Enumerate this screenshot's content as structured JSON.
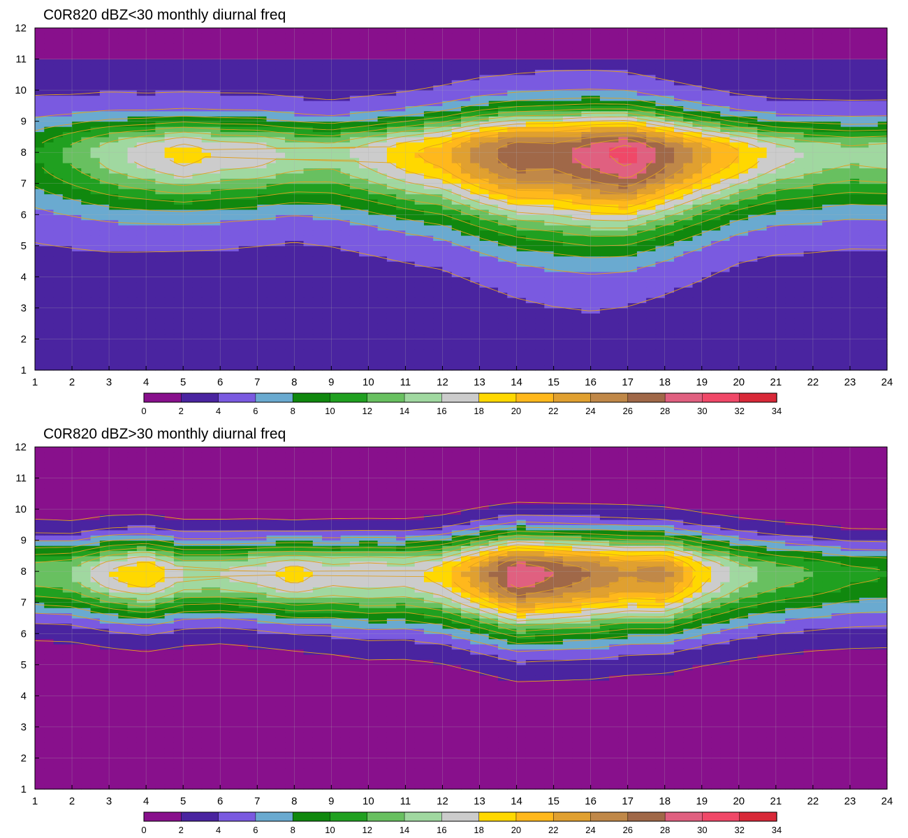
{
  "chart_data": [
    {
      "type": "heatmap",
      "title": "C0R820 dBZ<30 monthly diurnal freq",
      "xlabel": "",
      "ylabel": "",
      "xlim": [
        1,
        24
      ],
      "ylim": [
        1,
        12
      ],
      "x_ticks": [
        "1",
        "2",
        "3",
        "4",
        "5",
        "6",
        "7",
        "8",
        "9",
        "10",
        "11",
        "12",
        "13",
        "14",
        "15",
        "16",
        "17",
        "18",
        "19",
        "20",
        "21",
        "22",
        "23",
        "24"
      ],
      "y_ticks": [
        "1",
        "2",
        "3",
        "4",
        "5",
        "6",
        "7",
        "8",
        "9",
        "10",
        "11",
        "12"
      ],
      "grid": true,
      "colorbar": {
        "placement": "bottom",
        "levels": [
          0,
          2,
          4,
          6,
          8,
          10,
          12,
          14,
          16,
          18,
          20,
          22,
          24,
          26,
          28,
          30,
          32,
          34
        ],
        "labels": [
          "0",
          "2",
          "4",
          "6",
          "8",
          "10",
          "12",
          "14",
          "16",
          "18",
          "20",
          "22",
          "24",
          "26",
          "28",
          "30",
          "32",
          "34"
        ]
      },
      "profile": {
        "x": [
          1,
          2,
          3,
          4,
          5,
          6,
          7,
          8,
          9,
          10,
          11,
          12,
          13,
          14,
          15,
          16,
          17,
          18,
          19,
          20,
          21,
          22,
          23,
          24
        ],
        "peak": [
          10,
          12.5,
          15,
          17,
          19,
          17.5,
          17,
          15.5,
          15,
          17,
          19.5,
          21,
          25,
          27.5,
          27,
          29,
          31,
          27,
          23,
          20,
          17,
          15.5,
          14.5,
          15
        ],
        "center_y": 8.0,
        "width_below": [
          1.9,
          1.9,
          1.9,
          1.85,
          1.8,
          1.8,
          1.75,
          1.7,
          1.8,
          1.9,
          2.0,
          2.1,
          2.3,
          2.5,
          2.65,
          2.7,
          2.6,
          2.45,
          2.25,
          2.0,
          1.9,
          1.9,
          1.85,
          1.85
        ],
        "width_above": [
          1.2,
          1.15,
          1.15,
          1.1,
          1.1,
          1.1,
          1.1,
          1.05,
          1.0,
          1.05,
          1.1,
          1.2,
          1.3,
          1.35,
          1.4,
          1.4,
          1.35,
          1.25,
          1.15,
          1.05,
          1.0,
          1.0,
          1.0,
          1.0
        ],
        "background": 3.5
      }
    },
    {
      "type": "heatmap",
      "title": "C0R820 dBZ>30 monthly diurnal freq",
      "xlabel": "",
      "ylabel": "",
      "xlim": [
        1,
        24
      ],
      "ylim": [
        1,
        12
      ],
      "x_ticks": [
        "1",
        "2",
        "3",
        "4",
        "5",
        "6",
        "7",
        "8",
        "9",
        "10",
        "11",
        "12",
        "13",
        "14",
        "15",
        "16",
        "17",
        "18",
        "19",
        "20",
        "21",
        "22",
        "23",
        "24"
      ],
      "y_ticks": [
        "1",
        "2",
        "3",
        "4",
        "5",
        "6",
        "7",
        "8",
        "9",
        "10",
        "11",
        "12"
      ],
      "grid": true,
      "colorbar": {
        "placement": "bottom",
        "levels": [
          0,
          2,
          4,
          6,
          8,
          10,
          12,
          14,
          16,
          18,
          20,
          22,
          24,
          26,
          28,
          30,
          32,
          34
        ],
        "labels": [
          "0",
          "2",
          "4",
          "6",
          "8",
          "10",
          "12",
          "14",
          "16",
          "18",
          "20",
          "22",
          "24",
          "26",
          "28",
          "30",
          "32",
          "34"
        ]
      },
      "profile": {
        "x": [
          1,
          2,
          3,
          4,
          5,
          6,
          7,
          8,
          9,
          10,
          11,
          12,
          13,
          14,
          15,
          16,
          17,
          18,
          19,
          20,
          21,
          22,
          23,
          24
        ],
        "peak": [
          13,
          14,
          18,
          20,
          16,
          16,
          17,
          19,
          17,
          17.5,
          17,
          19,
          24,
          30,
          28,
          26,
          24,
          25,
          19,
          15,
          13,
          12,
          10.5,
          10
        ],
        "center_y": 7.95,
        "width_below": [
          1.45,
          1.45,
          1.5,
          1.55,
          1.5,
          1.45,
          1.5,
          1.55,
          1.65,
          1.75,
          1.75,
          1.8,
          1.9,
          2.0,
          2.0,
          2.0,
          1.95,
          1.9,
          1.85,
          1.8,
          1.75,
          1.7,
          1.7,
          1.7
        ],
        "width_above": [
          1.15,
          1.1,
          1.15,
          1.15,
          1.1,
          1.1,
          1.1,
          1.05,
          1.1,
          1.1,
          1.1,
          1.15,
          1.25,
          1.3,
          1.3,
          1.3,
          1.3,
          1.25,
          1.2,
          1.15,
          1.1,
          1.05,
          1.0,
          1.0
        ],
        "background": 1.0
      }
    }
  ],
  "colors": {
    "palette": [
      "#88108c",
      "#4a24a0",
      "#7a5ae0",
      "#6aaad0",
      "#10880e",
      "#20a020",
      "#68c060",
      "#a0d8a0",
      "#cccccc",
      "#ffd800",
      "#ffb81c",
      "#e0a030",
      "#c08848",
      "#a06848",
      "#e06080",
      "#f04868",
      "#d82838"
    ],
    "contour_line": "#e0a020",
    "grid_line": "#b0b0b0"
  }
}
